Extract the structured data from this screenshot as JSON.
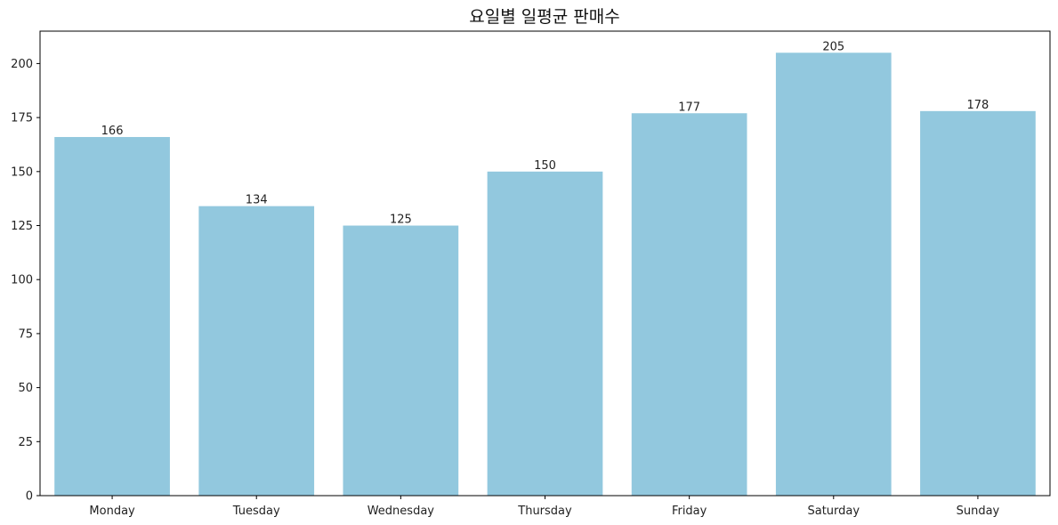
{
  "chart_data": {
    "type": "bar",
    "title": "요일별 일평균 판매수",
    "xlabel": "",
    "ylabel": "",
    "categories": [
      "Monday",
      "Tuesday",
      "Wednesday",
      "Thursday",
      "Friday",
      "Saturday",
      "Sunday"
    ],
    "values": [
      166,
      134,
      125,
      150,
      177,
      205,
      178
    ],
    "value_labels": [
      "166",
      "134",
      "125",
      "150",
      "177",
      "205",
      "178"
    ],
    "ylim": [
      0,
      215
    ],
    "yticks": [
      0,
      25,
      50,
      75,
      100,
      125,
      150,
      175,
      200
    ],
    "ytick_labels": [
      "0",
      "25",
      "50",
      "75",
      "100",
      "125",
      "150",
      "175",
      "200"
    ],
    "bar_color": "#92c8de",
    "grid": false,
    "legend": "none"
  }
}
